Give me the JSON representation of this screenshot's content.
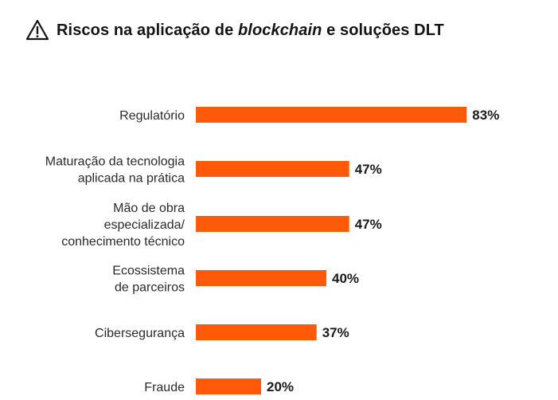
{
  "header": {
    "title_pre": "Riscos na aplicação de ",
    "title_em": "blockchain",
    "title_post": " e soluções DLT",
    "icon": "warning-triangle-icon"
  },
  "colors": {
    "bar": "#ff5a0a",
    "text": "#1a1a1a"
  },
  "chart_data": {
    "type": "bar",
    "orientation": "horizontal",
    "title": "Riscos na aplicação de blockchain e soluções DLT",
    "categories": [
      [
        "Regulatório"
      ],
      [
        "Maturação da tecnologia",
        "aplicada na prática"
      ],
      [
        "Mão de obra",
        "especializada/",
        "conhecimento técnico"
      ],
      [
        "Ecossistema",
        "de parceiros"
      ],
      [
        "Cibersegurança"
      ],
      [
        "Fraude"
      ]
    ],
    "values": [
      83,
      47,
      47,
      40,
      37,
      20
    ],
    "value_labels": [
      "83%",
      "47%",
      "47%",
      "40%",
      "37%",
      "20%"
    ],
    "xlim": [
      0,
      100
    ],
    "grid": false,
    "legend": "none"
  }
}
